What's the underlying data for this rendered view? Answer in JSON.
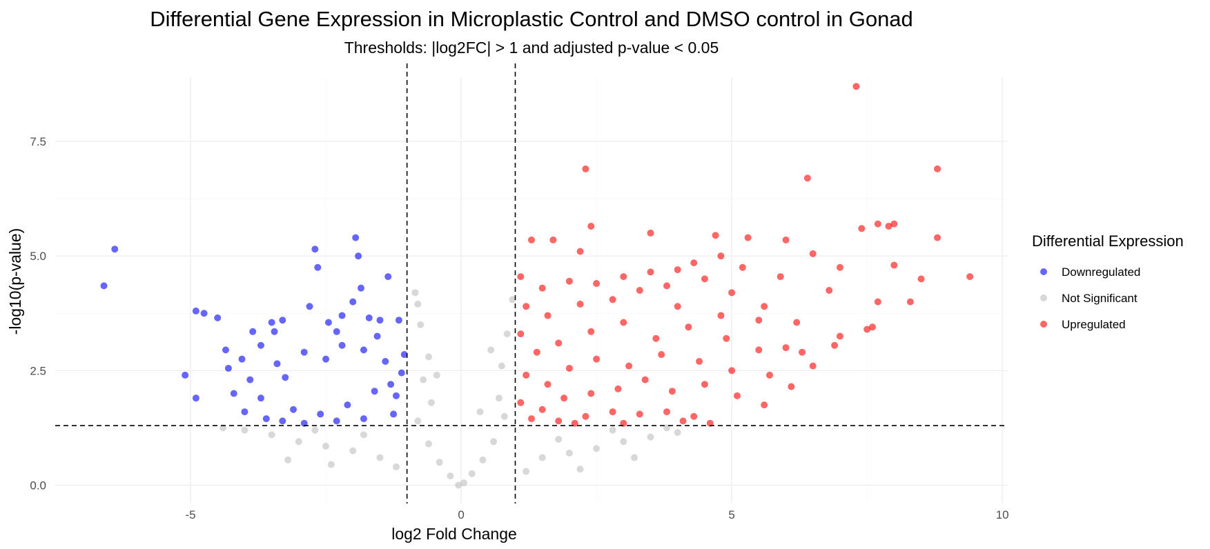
{
  "chart_data": {
    "type": "scatter",
    "title": "Differential Gene Expression in Microplastic Control and DMSO control in Gonad",
    "subtitle": "Thresholds: |log2FC| > 1 and adjusted p-value < 0.05",
    "xlabel": "log2 Fold Change",
    "ylabel": "-log10(p-value)",
    "xlim": [
      -7.5,
      10.1
    ],
    "ylim": [
      -0.4,
      8.9
    ],
    "x_ticks": [
      -5,
      0,
      5,
      10
    ],
    "x_tick_labels": [
      "-5",
      "0",
      "5",
      "10"
    ],
    "y_ticks": [
      0.0,
      2.5,
      5.0,
      7.5
    ],
    "y_tick_labels": [
      "0.0",
      "2.5",
      "5.0",
      "7.5"
    ],
    "grid": true,
    "legend": {
      "title": "Differential Expression",
      "placement": "right",
      "entries": [
        "Downregulated",
        "Not Significant",
        "Upregulated"
      ]
    },
    "thresholds": {
      "x": [
        -1,
        1
      ],
      "y": 1.3
    },
    "series": [
      {
        "name": "Downregulated",
        "color": "#0000ff",
        "points": [
          [
            -6.6,
            4.35
          ],
          [
            -6.4,
            5.15
          ],
          [
            -5.1,
            2.4
          ],
          [
            -4.9,
            3.8
          ],
          [
            -4.9,
            1.9
          ],
          [
            -4.75,
            3.75
          ],
          [
            -4.5,
            3.65
          ],
          [
            -4.35,
            2.95
          ],
          [
            -4.3,
            2.55
          ],
          [
            -4.05,
            2.75
          ],
          [
            -3.85,
            3.35
          ],
          [
            -3.7,
            3.05
          ],
          [
            -3.5,
            3.55
          ],
          [
            -3.45,
            3.35
          ],
          [
            -3.3,
            3.6
          ],
          [
            -3.25,
            2.35
          ],
          [
            -2.8,
            3.9
          ],
          [
            -2.7,
            5.15
          ],
          [
            -2.65,
            4.75
          ],
          [
            -2.45,
            3.55
          ],
          [
            -2.3,
            3.35
          ],
          [
            -2.2,
            3.7
          ],
          [
            -2.0,
            4.0
          ],
          [
            -1.95,
            5.4
          ],
          [
            -1.9,
            5.0
          ],
          [
            -1.85,
            4.3
          ],
          [
            -1.7,
            3.65
          ],
          [
            -1.55,
            3.25
          ],
          [
            -1.5,
            3.6
          ],
          [
            -1.35,
            4.55
          ],
          [
            -1.15,
            3.6
          ],
          [
            -1.05,
            2.85
          ],
          [
            -1.1,
            2.45
          ],
          [
            -1.2,
            1.95
          ],
          [
            -1.6,
            2.05
          ],
          [
            -2.1,
            1.75
          ],
          [
            -2.6,
            1.55
          ],
          [
            -3.1,
            1.65
          ],
          [
            -3.6,
            1.45
          ],
          [
            -4.0,
            1.6
          ],
          [
            -4.2,
            2.0
          ],
          [
            -3.9,
            2.3
          ],
          [
            -3.4,
            2.65
          ],
          [
            -2.9,
            2.9
          ],
          [
            -2.5,
            2.75
          ],
          [
            -2.2,
            3.05
          ],
          [
            -1.8,
            2.95
          ],
          [
            -1.4,
            2.7
          ],
          [
            -1.3,
            2.2
          ],
          [
            -1.25,
            1.55
          ],
          [
            -1.8,
            1.45
          ],
          [
            -2.3,
            1.4
          ],
          [
            -2.9,
            1.35
          ],
          [
            -3.3,
            1.4
          ],
          [
            -3.7,
            1.9
          ]
        ]
      },
      {
        "name": "Not Significant",
        "color": "#bebebe",
        "points": [
          [
            -0.05,
            0.0
          ],
          [
            0.05,
            0.05
          ],
          [
            -0.2,
            0.2
          ],
          [
            0.2,
            0.25
          ],
          [
            -0.4,
            0.5
          ],
          [
            0.4,
            0.55
          ],
          [
            -0.6,
            0.9
          ],
          [
            0.6,
            0.95
          ],
          [
            -0.8,
            1.4
          ],
          [
            0.8,
            1.5
          ],
          [
            -0.55,
            1.8
          ],
          [
            0.7,
            1.9
          ],
          [
            -0.7,
            2.3
          ],
          [
            0.75,
            2.6
          ],
          [
            -0.6,
            2.8
          ],
          [
            0.55,
            2.95
          ],
          [
            -0.75,
            3.5
          ],
          [
            0.85,
            3.3
          ],
          [
            -0.8,
            3.95
          ],
          [
            0.95,
            4.05
          ],
          [
            -0.85,
            4.2
          ],
          [
            -0.45,
            2.4
          ],
          [
            0.35,
            1.6
          ],
          [
            -1.5,
            0.6
          ],
          [
            -2.0,
            0.75
          ],
          [
            -2.5,
            0.85
          ],
          [
            -3.0,
            0.95
          ],
          [
            -3.5,
            1.1
          ],
          [
            -4.0,
            1.2
          ],
          [
            -4.4,
            1.25
          ],
          [
            -2.4,
            0.45
          ],
          [
            -3.2,
            0.55
          ],
          [
            -1.2,
            0.4
          ],
          [
            -1.8,
            1.1
          ],
          [
            -2.7,
            1.2
          ],
          [
            1.5,
            0.6
          ],
          [
            2.0,
            0.7
          ],
          [
            2.5,
            0.8
          ],
          [
            3.0,
            0.95
          ],
          [
            3.5,
            1.05
          ],
          [
            4.0,
            1.15
          ],
          [
            1.2,
            0.3
          ],
          [
            2.2,
            0.35
          ],
          [
            3.2,
            0.6
          ],
          [
            1.8,
            1.0
          ],
          [
            2.8,
            1.2
          ],
          [
            3.8,
            1.25
          ]
        ]
      },
      {
        "name": "Upregulated",
        "color": "#ff0000",
        "points": [
          [
            7.3,
            8.7
          ],
          [
            8.8,
            6.9
          ],
          [
            2.3,
            6.9
          ],
          [
            6.4,
            6.7
          ],
          [
            2.4,
            5.65
          ],
          [
            3.5,
            5.5
          ],
          [
            7.4,
            5.6
          ],
          [
            7.7,
            5.7
          ],
          [
            7.9,
            5.65
          ],
          [
            8.0,
            5.7
          ],
          [
            8.8,
            5.4
          ],
          [
            9.4,
            4.55
          ],
          [
            5.3,
            5.4
          ],
          [
            4.7,
            5.45
          ],
          [
            6.0,
            5.35
          ],
          [
            1.3,
            5.35
          ],
          [
            1.7,
            5.35
          ],
          [
            2.2,
            5.1
          ],
          [
            4.8,
            5.0
          ],
          [
            6.5,
            5.05
          ],
          [
            7.0,
            4.75
          ],
          [
            7.7,
            4.0
          ],
          [
            8.3,
            4.0
          ],
          [
            8.5,
            4.5
          ],
          [
            8.0,
            4.8
          ],
          [
            7.5,
            3.4
          ],
          [
            6.5,
            2.6
          ],
          [
            6.0,
            3.0
          ],
          [
            5.5,
            3.6
          ],
          [
            5.0,
            4.2
          ],
          [
            4.5,
            4.5
          ],
          [
            4.0,
            4.7
          ],
          [
            3.5,
            4.65
          ],
          [
            3.0,
            4.55
          ],
          [
            2.5,
            4.4
          ],
          [
            2.0,
            4.45
          ],
          [
            1.5,
            4.3
          ],
          [
            1.1,
            4.55
          ],
          [
            1.2,
            3.9
          ],
          [
            1.6,
            3.7
          ],
          [
            2.2,
            3.95
          ],
          [
            2.8,
            4.05
          ],
          [
            3.3,
            4.25
          ],
          [
            4.0,
            3.9
          ],
          [
            4.8,
            3.7
          ],
          [
            5.6,
            3.9
          ],
          [
            6.2,
            3.55
          ],
          [
            7.0,
            3.25
          ],
          [
            7.6,
            3.45
          ],
          [
            6.8,
            4.25
          ],
          [
            5.9,
            4.55
          ],
          [
            5.2,
            4.75
          ],
          [
            4.3,
            4.85
          ],
          [
            3.8,
            4.35
          ],
          [
            1.1,
            3.3
          ],
          [
            1.4,
            2.9
          ],
          [
            1.8,
            3.1
          ],
          [
            2.4,
            3.35
          ],
          [
            3.0,
            3.55
          ],
          [
            3.6,
            3.2
          ],
          [
            4.2,
            3.45
          ],
          [
            4.9,
            3.2
          ],
          [
            5.5,
            2.95
          ],
          [
            6.3,
            2.9
          ],
          [
            6.9,
            3.05
          ],
          [
            1.2,
            2.4
          ],
          [
            1.6,
            2.2
          ],
          [
            2.0,
            2.55
          ],
          [
            2.5,
            2.75
          ],
          [
            3.1,
            2.6
          ],
          [
            3.7,
            2.85
          ],
          [
            4.4,
            2.7
          ],
          [
            5.0,
            2.5
          ],
          [
            5.7,
            2.4
          ],
          [
            6.1,
            2.15
          ],
          [
            1.1,
            1.8
          ],
          [
            1.5,
            1.65
          ],
          [
            1.9,
            1.9
          ],
          [
            2.4,
            2.0
          ],
          [
            2.9,
            2.1
          ],
          [
            3.4,
            2.3
          ],
          [
            3.9,
            2.05
          ],
          [
            4.5,
            2.2
          ],
          [
            5.1,
            1.95
          ],
          [
            5.6,
            1.75
          ],
          [
            1.3,
            1.45
          ],
          [
            1.8,
            1.4
          ],
          [
            2.3,
            1.5
          ],
          [
            2.8,
            1.6
          ],
          [
            3.3,
            1.55
          ],
          [
            3.8,
            1.6
          ],
          [
            4.3,
            1.5
          ],
          [
            4.6,
            1.35
          ],
          [
            4.1,
            1.4
          ],
          [
            3.0,
            1.35
          ],
          [
            2.1,
            1.35
          ]
        ]
      }
    ]
  }
}
